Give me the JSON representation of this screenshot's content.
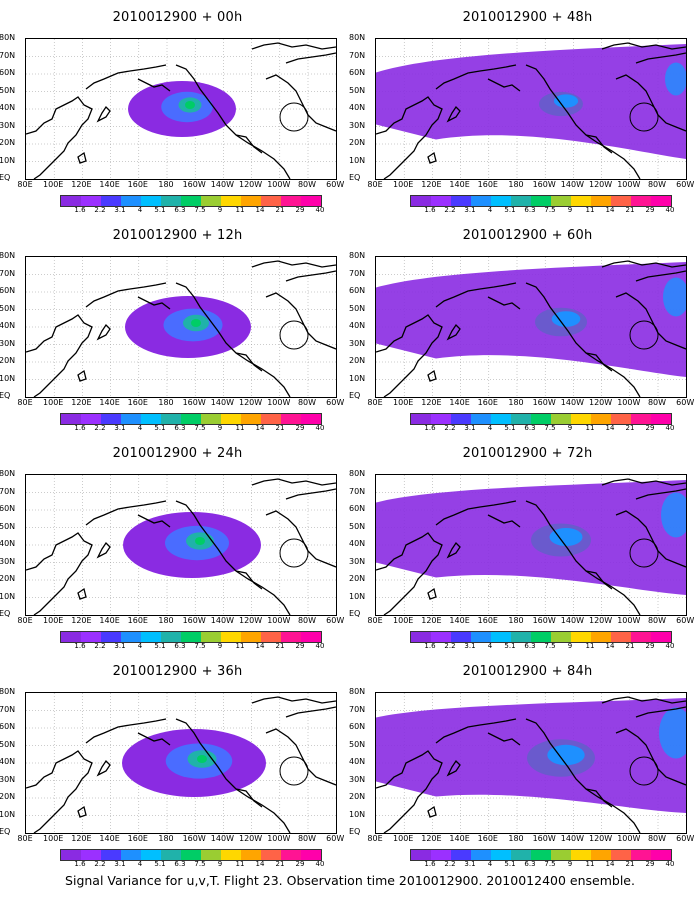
{
  "panels": [
    {
      "title": "2010012900 + 00h",
      "intensity": 0.15
    },
    {
      "title": "2010012900 + 48h",
      "intensity": 0.55
    },
    {
      "title": "2010012900 + 12h",
      "intensity": 0.3
    },
    {
      "title": "2010012900 + 60h",
      "intensity": 0.65
    },
    {
      "title": "2010012900 + 24h",
      "intensity": 0.4
    },
    {
      "title": "2010012900 + 72h",
      "intensity": 0.75
    },
    {
      "title": "2010012900 + 36h",
      "intensity": 0.45
    },
    {
      "title": "2010012900 + 84h",
      "intensity": 0.85
    }
  ],
  "lat_labels": [
    "80N",
    "70N",
    "60N",
    "50N",
    "40N",
    "30N",
    "20N",
    "10N",
    "EQ"
  ],
  "lon_labels": [
    "80E",
    "100E",
    "120E",
    "140E",
    "160E",
    "180",
    "160W",
    "140W",
    "120W",
    "100W",
    "80W",
    "60W"
  ],
  "colorbar": {
    "colors": [
      "#8a2be2",
      "#9b30ff",
      "#4a3aff",
      "#1e90ff",
      "#00bfff",
      "#20b2aa",
      "#00cd66",
      "#9acd32",
      "#ffd700",
      "#ffa500",
      "#ff6347",
      "#ff1493",
      "#ff00aa"
    ],
    "labels": [
      "1.6",
      "2.2",
      "3.1",
      "4",
      "5.1",
      "6.3",
      "7.5",
      "9",
      "11",
      "14",
      "21",
      "29",
      "40"
    ]
  },
  "caption": "Signal Variance for u,v,T. Flight 23. Observation time 2010012900. 2010012400 ensemble."
}
